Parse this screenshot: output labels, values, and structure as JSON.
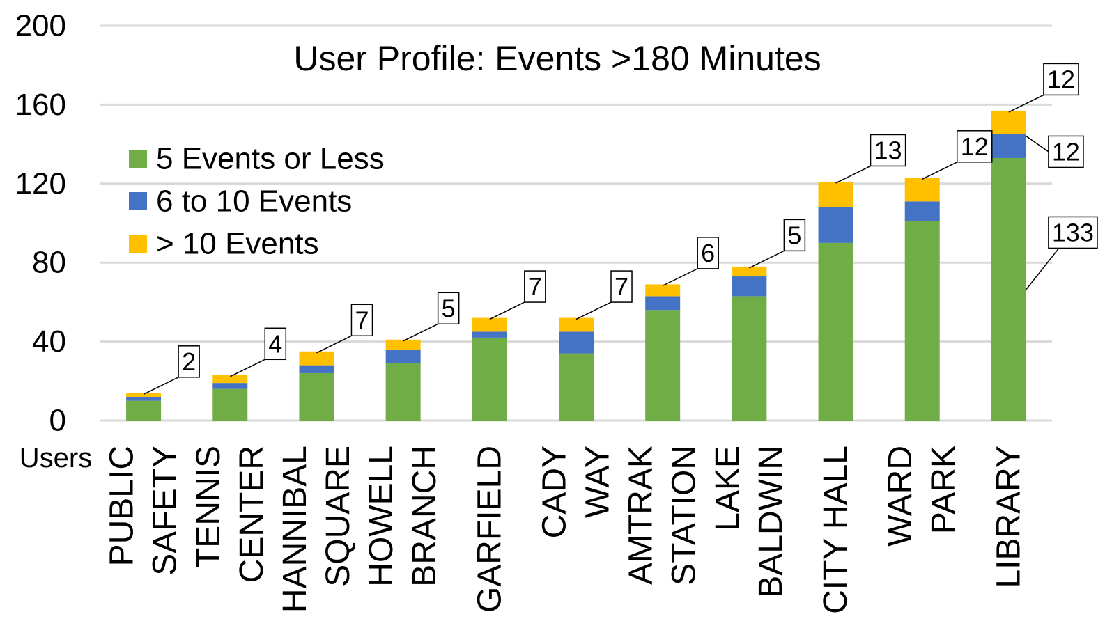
{
  "chart_data": {
    "type": "stacked_bar",
    "title": "User Profile: Events >180 Minutes",
    "ylabel": "Users",
    "categories": [
      [
        "PUBLIC",
        "SAFETY"
      ],
      [
        "TENNIS",
        "CENTER"
      ],
      [
        "HANNIBAL",
        "SQUARE"
      ],
      [
        "HOWELL",
        "BRANCH"
      ],
      [
        "GARFIELD"
      ],
      [
        "CADY",
        "WAY"
      ],
      [
        "AMTRAK",
        "STATION"
      ],
      [
        "LAKE",
        "BALDWIN"
      ],
      [
        "CITY HALL"
      ],
      [
        "WARD",
        "PARK"
      ],
      [
        "LIBRARY"
      ]
    ],
    "series": [
      {
        "name": "5 Events or Less",
        "color": "#70ad47",
        "values": [
          10,
          16,
          24,
          29,
          42,
          34,
          56,
          63,
          90,
          101,
          133
        ],
        "value_labels": [
          null,
          null,
          null,
          null,
          null,
          null,
          null,
          null,
          null,
          null,
          "133"
        ]
      },
      {
        "name": "6 to 10 Events",
        "color": "#4472c4",
        "values": [
          2,
          3,
          4,
          7,
          3,
          11,
          7,
          10,
          18,
          10,
          12
        ],
        "value_labels": [
          null,
          null,
          null,
          null,
          null,
          null,
          null,
          null,
          null,
          null,
          "12"
        ]
      },
      {
        "name": "> 10 Events",
        "color": "#ffc000",
        "values": [
          2,
          4,
          7,
          5,
          7,
          7,
          6,
          5,
          13,
          12,
          12
        ],
        "value_labels": [
          "2",
          "4",
          "7",
          "5",
          "7",
          "7",
          "6",
          "5",
          "13",
          "12",
          "12"
        ]
      }
    ],
    "ylim": [
      0,
      200
    ],
    "yticks": [
      0,
      40,
      80,
      120,
      160,
      200
    ],
    "grid": true,
    "legend": "upper left"
  }
}
